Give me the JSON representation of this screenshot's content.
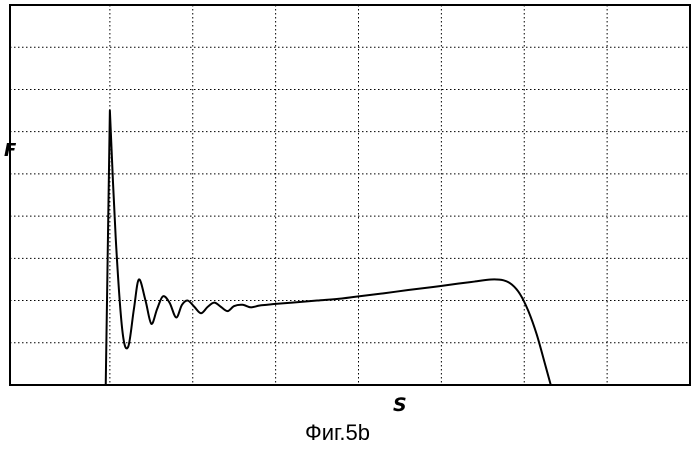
{
  "chart_data": {
    "type": "line",
    "title": "",
    "xlabel": "S",
    "ylabel": "F",
    "caption": "Фиг.5b",
    "grid": true,
    "x_gridlines": 8,
    "y_gridlines": 9,
    "xlim": [
      0,
      8
    ],
    "ylim": [
      0,
      9
    ],
    "line_color": "#000000",
    "series": [
      {
        "x": [
          0.95,
          1.0,
          1.07,
          1.15,
          1.22,
          1.29,
          1.35,
          1.43,
          1.5,
          1.57,
          1.64,
          1.72,
          1.8,
          1.87,
          1.94,
          2.02,
          2.1,
          2.18,
          2.26,
          2.34,
          2.42,
          2.5,
          2.6,
          2.7,
          2.8,
          2.9,
          3.0,
          3.2,
          3.5,
          3.8,
          4.0,
          4.3,
          4.6,
          4.9,
          5.2,
          5.4,
          5.6,
          5.75,
          5.85,
          5.95,
          6.05,
          6.15,
          6.25,
          6.32
        ],
        "y": [
          0.0,
          6.5,
          3.5,
          1.3,
          0.9,
          1.8,
          2.5,
          2.0,
          1.45,
          1.8,
          2.1,
          1.95,
          1.6,
          1.9,
          2.0,
          1.85,
          1.7,
          1.85,
          1.95,
          1.85,
          1.75,
          1.87,
          1.9,
          1.84,
          1.88,
          1.9,
          1.92,
          1.95,
          2.0,
          2.05,
          2.1,
          2.17,
          2.25,
          2.32,
          2.4,
          2.45,
          2.5,
          2.48,
          2.38,
          2.15,
          1.75,
          1.2,
          0.5,
          0.0
        ]
      }
    ]
  }
}
